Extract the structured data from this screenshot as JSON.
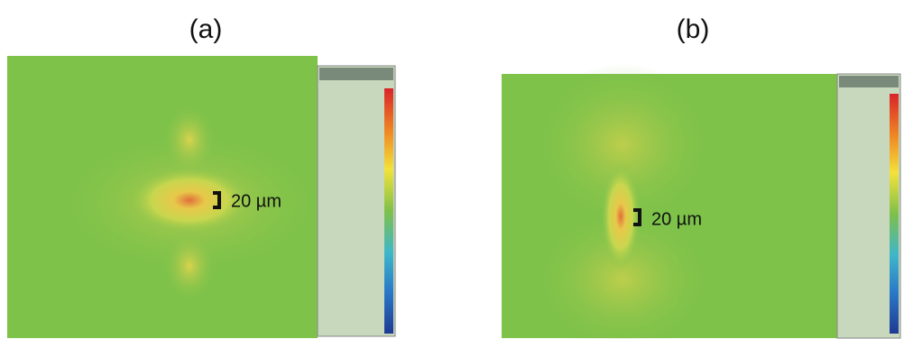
{
  "panels": [
    {
      "label": "(a)",
      "scale": "20 µm"
    },
    {
      "label": "(b)",
      "scale": "20 µm"
    }
  ]
}
